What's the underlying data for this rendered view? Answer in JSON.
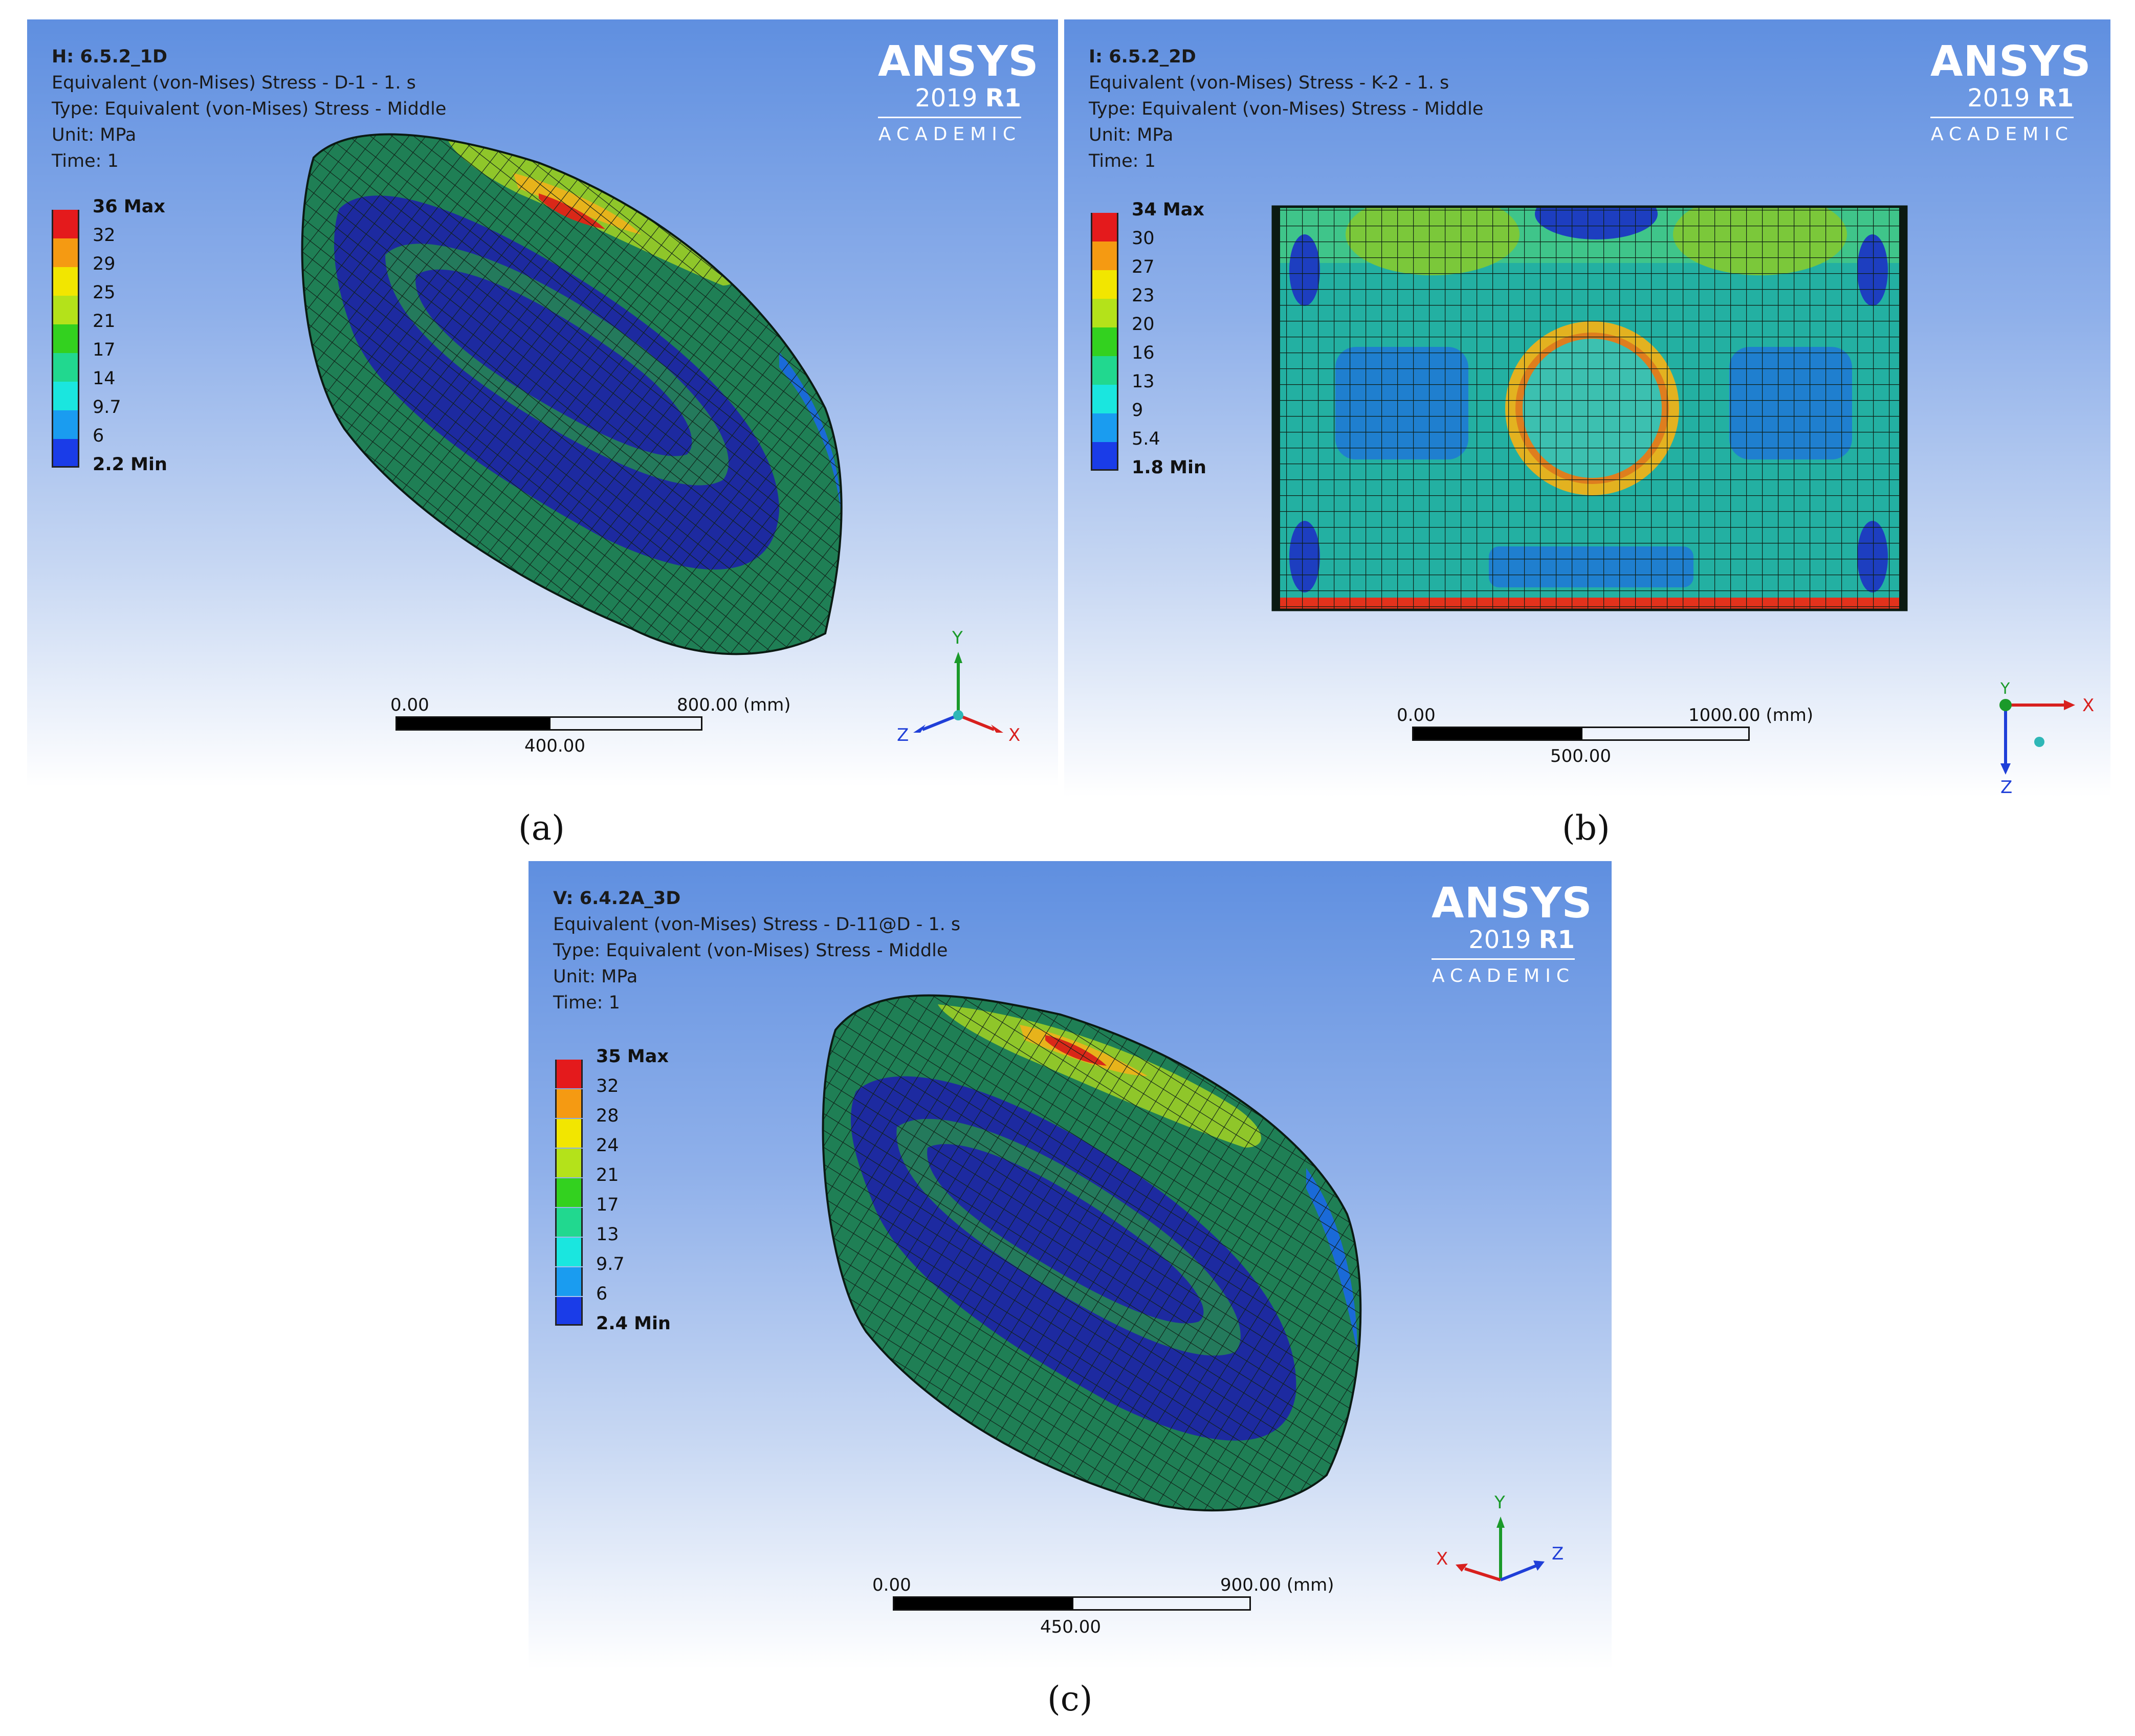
{
  "brand": {
    "name": "ANSYS",
    "version": "2019",
    "release": "R1",
    "edition": "ACADEMIC"
  },
  "panels": {
    "a": {
      "title": "H: 6.5.2_1D",
      "line1": "Equivalent (von-Mises) Stress - D-1 - 1. s",
      "line2": "Type: Equivalent (von-Mises) Stress - Middle",
      "line3": "Unit: MPa",
      "line4": "Time: 1",
      "legend": [
        "36 Max",
        "32",
        "29",
        "25",
        "21",
        "17",
        "14",
        "9.7",
        "6",
        "2.2 Min"
      ],
      "scale": {
        "start": "0.00",
        "end": "800.00 (mm)",
        "mid": "400.00"
      },
      "axes": {
        "y": "Y",
        "z": "Z",
        "x": "X"
      },
      "caption": "(a)"
    },
    "b": {
      "title": "I: 6.5.2_2D",
      "line1": "Equivalent (von-Mises) Stress - K-2 - 1. s",
      "line2": "Type: Equivalent (von-Mises) Stress - Middle",
      "line3": "Unit: MPa",
      "line4": "Time: 1",
      "legend": [
        "34 Max",
        "30",
        "27",
        "23",
        "20",
        "16",
        "13",
        "9",
        "5.4",
        "1.8 Min"
      ],
      "scale": {
        "start": "0.00",
        "end": "1000.00 (mm)",
        "mid": "500.00"
      },
      "axes": {
        "y": "Y",
        "z": "Z",
        "x": "X"
      },
      "caption": "(b)"
    },
    "c": {
      "title": "V: 6.4.2A_3D",
      "line1": "Equivalent (von-Mises) Stress - D-11@D - 1. s",
      "line2": "Type: Equivalent (von-Mises) Stress - Middle",
      "line3": "Unit: MPa",
      "line4": "Time: 1",
      "legend": [
        "35 Max",
        "32",
        "28",
        "24",
        "21",
        "17",
        "13",
        "9.7",
        "6",
        "2.4 Min"
      ],
      "scale": {
        "start": "0.00",
        "end": "900.00 (mm)",
        "mid": "450.00"
      },
      "axes": {
        "y": "Y",
        "z": "Z",
        "x": "X"
      },
      "caption": "(c)"
    }
  },
  "legend_colors": [
    "#e41a1c",
    "#f59a12",
    "#f2e600",
    "#b4e21a",
    "#33d11f",
    "#21d88f",
    "#1ae6df",
    "#1a9cf0",
    "#1a3ce8"
  ]
}
